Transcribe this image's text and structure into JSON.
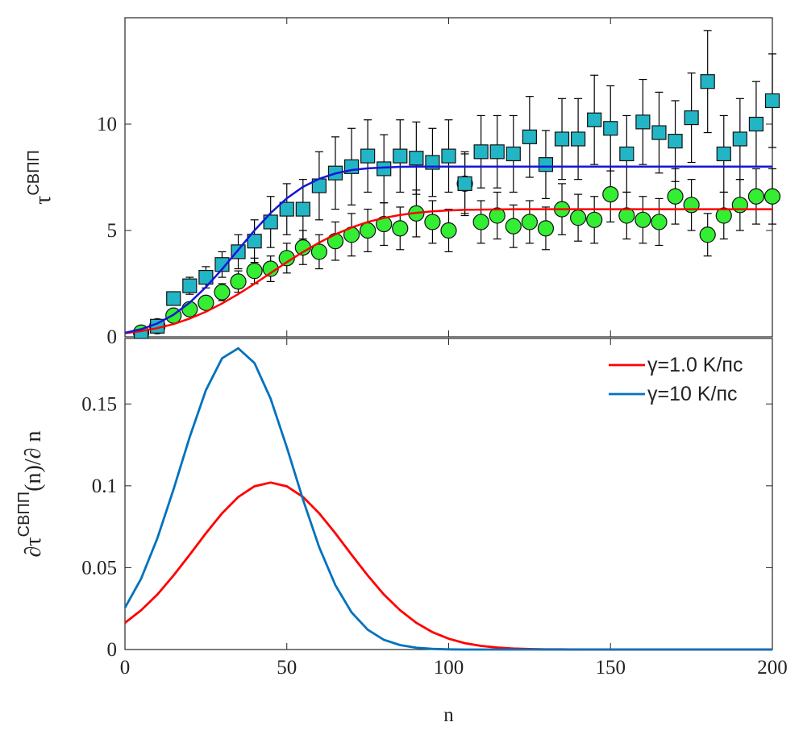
{
  "chart_data": [
    {
      "type": "scatter",
      "ylabel": [
        "τ",
        "СВПП"
      ],
      "xlim": [
        0,
        200
      ],
      "xticks": [
        0,
        50,
        100,
        150,
        200
      ],
      "ylim": [
        0,
        15
      ],
      "yticks": [
        0,
        5,
        10
      ],
      "series": [
        {
          "marker": "circle",
          "color": "#33ee33",
          "x": [
            5,
            10,
            15,
            20,
            25,
            30,
            35,
            40,
            45,
            50,
            55,
            60,
            65,
            70,
            75,
            80,
            85,
            90,
            95,
            100,
            105,
            110,
            115,
            120,
            125,
            130,
            135,
            140,
            145,
            150,
            155,
            160,
            165,
            170,
            175,
            180,
            185,
            190,
            195,
            200
          ],
          "values": [
            0.2,
            0.5,
            1.0,
            1.3,
            1.6,
            2.1,
            2.6,
            3.1,
            3.2,
            3.7,
            4.2,
            4.0,
            4.5,
            4.8,
            5.0,
            5.3,
            5.1,
            5.8,
            5.4,
            5.0,
            7.2,
            5.4,
            5.7,
            5.2,
            5.4,
            5.1,
            6.0,
            5.6,
            5.5,
            6.7,
            5.7,
            5.5,
            5.4,
            6.6,
            6.2,
            4.8,
            5.7,
            6.2,
            6.6,
            6.6
          ],
          "errors": [
            0.1,
            0.1,
            0.2,
            0.3,
            0.3,
            0.4,
            0.5,
            0.6,
            0.6,
            0.7,
            0.8,
            0.8,
            0.9,
            1.0,
            1.0,
            1.0,
            1.0,
            1.1,
            1.0,
            1.0,
            1.4,
            1.0,
            1.1,
            1.0,
            1.0,
            1.0,
            1.2,
            1.1,
            1.1,
            1.3,
            1.1,
            1.1,
            1.1,
            1.3,
            1.2,
            1.0,
            1.1,
            1.2,
            1.3,
            1.3
          ]
        },
        {
          "marker": "square",
          "color": "#22b5c5",
          "x": [
            5,
            10,
            15,
            20,
            25,
            30,
            35,
            40,
            45,
            50,
            55,
            60,
            65,
            70,
            75,
            80,
            85,
            90,
            95,
            100,
            105,
            110,
            115,
            120,
            125,
            130,
            135,
            140,
            145,
            150,
            155,
            160,
            165,
            170,
            175,
            180,
            185,
            190,
            195,
            200
          ],
          "values": [
            0,
            0.5,
            1.8,
            2.4,
            2.8,
            3.4,
            4.0,
            4.5,
            5.4,
            6.0,
            6.0,
            7.1,
            7.7,
            8.0,
            8.5,
            7.9,
            8.5,
            8.4,
            8.2,
            8.5,
            7.2,
            8.7,
            8.7,
            8.6,
            9.4,
            8.1,
            9.3,
            9.3,
            10.2,
            9.8,
            8.6,
            10.1,
            9.6,
            9.2,
            10.3,
            12.0,
            8.6,
            9.3,
            10.0,
            11.1
          ],
          "errors": [
            0,
            0.1,
            0.2,
            0.4,
            0.5,
            0.6,
            0.8,
            1.0,
            1.2,
            1.2,
            1.4,
            1.6,
            1.7,
            1.8,
            1.7,
            1.6,
            1.7,
            1.7,
            1.6,
            1.7,
            1.5,
            1.7,
            1.7,
            1.8,
            1.9,
            1.6,
            1.9,
            1.9,
            2.1,
            2.0,
            1.8,
            2.0,
            1.9,
            1.9,
            2.1,
            2.4,
            1.8,
            1.9,
            2.0,
            2.2
          ]
        },
        {
          "marker": "line",
          "color": "#ff0000",
          "x": [
            0,
            5,
            10,
            15,
            20,
            25,
            30,
            35,
            40,
            45,
            50,
            55,
            60,
            65,
            70,
            75,
            80,
            85,
            90,
            95,
            100,
            105,
            110,
            115,
            120,
            125,
            130,
            135,
            140,
            145,
            150,
            155,
            160,
            165,
            170,
            175,
            180,
            185,
            190,
            195,
            200
          ],
          "values": [
            0.17,
            0.27,
            0.41,
            0.6,
            0.86,
            1.18,
            1.57,
            2.01,
            2.49,
            3.0,
            3.51,
            3.99,
            4.43,
            4.82,
            5.14,
            5.4,
            5.59,
            5.73,
            5.83,
            5.9,
            5.94,
            5.97,
            5.98,
            5.99,
            6,
            6,
            6,
            6,
            6,
            6,
            6,
            6,
            6,
            6,
            6,
            6,
            6,
            6,
            6,
            6,
            6
          ]
        },
        {
          "marker": "line",
          "color": "#1515d8",
          "x": [
            0,
            5,
            10,
            15,
            20,
            25,
            30,
            35,
            40,
            45,
            50,
            55,
            60,
            65,
            70,
            75,
            80,
            85,
            90,
            95,
            100,
            105,
            110,
            115,
            120,
            125,
            130,
            135,
            140,
            145,
            150,
            155,
            160,
            165,
            170,
            175,
            180,
            185,
            190,
            195,
            200
          ],
          "values": [
            0.19,
            0.36,
            0.63,
            1.04,
            1.61,
            2.34,
            3.18,
            4.09,
            5.0,
            5.82,
            6.51,
            7.05,
            7.43,
            7.68,
            7.84,
            7.92,
            7.96,
            7.99,
            8,
            8,
            8,
            8,
            8,
            8,
            8,
            8,
            8,
            8,
            8,
            8,
            8,
            8,
            8,
            8,
            8,
            8,
            8,
            8,
            8,
            8,
            8
          ]
        }
      ]
    },
    {
      "type": "line",
      "xlabel": "n",
      "ylabel": [
        "∂τ",
        "СВПП",
        "(n)/∂ n"
      ],
      "xlim": [
        0,
        200
      ],
      "xticks": [
        0,
        50,
        100,
        150,
        200
      ],
      "ylim": [
        0,
        0.19
      ],
      "yticks": [
        0,
        0.05,
        0.1,
        0.15
      ],
      "legend": "upper right",
      "x": [
        0,
        5,
        10,
        15,
        20,
        25,
        30,
        35,
        40,
        45,
        50,
        55,
        60,
        65,
        70,
        75,
        80,
        85,
        90,
        95,
        100,
        105,
        110,
        115,
        120,
        125,
        130,
        135,
        140,
        145,
        150,
        155,
        160,
        165,
        170,
        175,
        180,
        185,
        190,
        195,
        200
      ],
      "series": [
        {
          "name": "γ=1.0 K/пс",
          "color": "#ff0000",
          "values": [
            0.0163,
            0.024,
            0.0336,
            0.0452,
            0.0579,
            0.071,
            0.0832,
            0.0932,
            0.0997,
            0.102,
            0.0997,
            0.0932,
            0.0832,
            0.071,
            0.0579,
            0.0452,
            0.0336,
            0.024,
            0.0163,
            0.0106,
            0.0066,
            0.0039,
            0.0022,
            0.0012,
            0.0006,
            0.0003,
            0.0001,
            0.0001,
            0,
            0,
            0,
            0,
            0,
            0,
            0,
            0,
            0,
            0,
            0,
            0,
            0
          ]
        },
        {
          "name": "γ=10 K/пс",
          "color": "#0072bd",
          "values": [
            0.0255,
            0.0433,
            0.0679,
            0.0978,
            0.1298,
            0.1584,
            0.1779,
            0.184,
            0.175,
            0.1532,
            0.1235,
            0.0916,
            0.0625,
            0.0393,
            0.0227,
            0.0121,
            0.0059,
            0.0027,
            0.0011,
            0.0004,
            0.0001,
            0,
            0,
            0,
            0,
            0,
            0,
            0,
            0,
            0,
            0,
            0,
            0,
            0,
            0,
            0,
            0,
            0,
            0,
            0,
            0
          ]
        }
      ]
    }
  ]
}
